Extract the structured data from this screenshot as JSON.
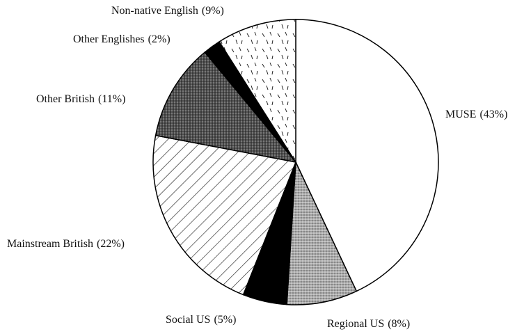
{
  "chart_data": {
    "type": "pie",
    "categories": [
      "MUSE",
      "Regional US",
      "Social US",
      "Mainstream British",
      "Other British",
      "Other Englishes",
      "Non-native English"
    ],
    "values": [
      43,
      8,
      5,
      22,
      11,
      2,
      9
    ],
    "value_labels": [
      "(43%)",
      "(8%)",
      "(5%)",
      "(22%)",
      "(11%)",
      "(2%)",
      "(9%)"
    ],
    "colors": [
      "#ffffff",
      "#b4b4b4",
      "#000000",
      "#ffffff",
      "#4a4a4a",
      "#000000",
      "#ffffff"
    ],
    "patterns": [
      "none",
      "dots",
      "none",
      "hatch",
      "dots",
      "none",
      "dashes"
    ]
  }
}
